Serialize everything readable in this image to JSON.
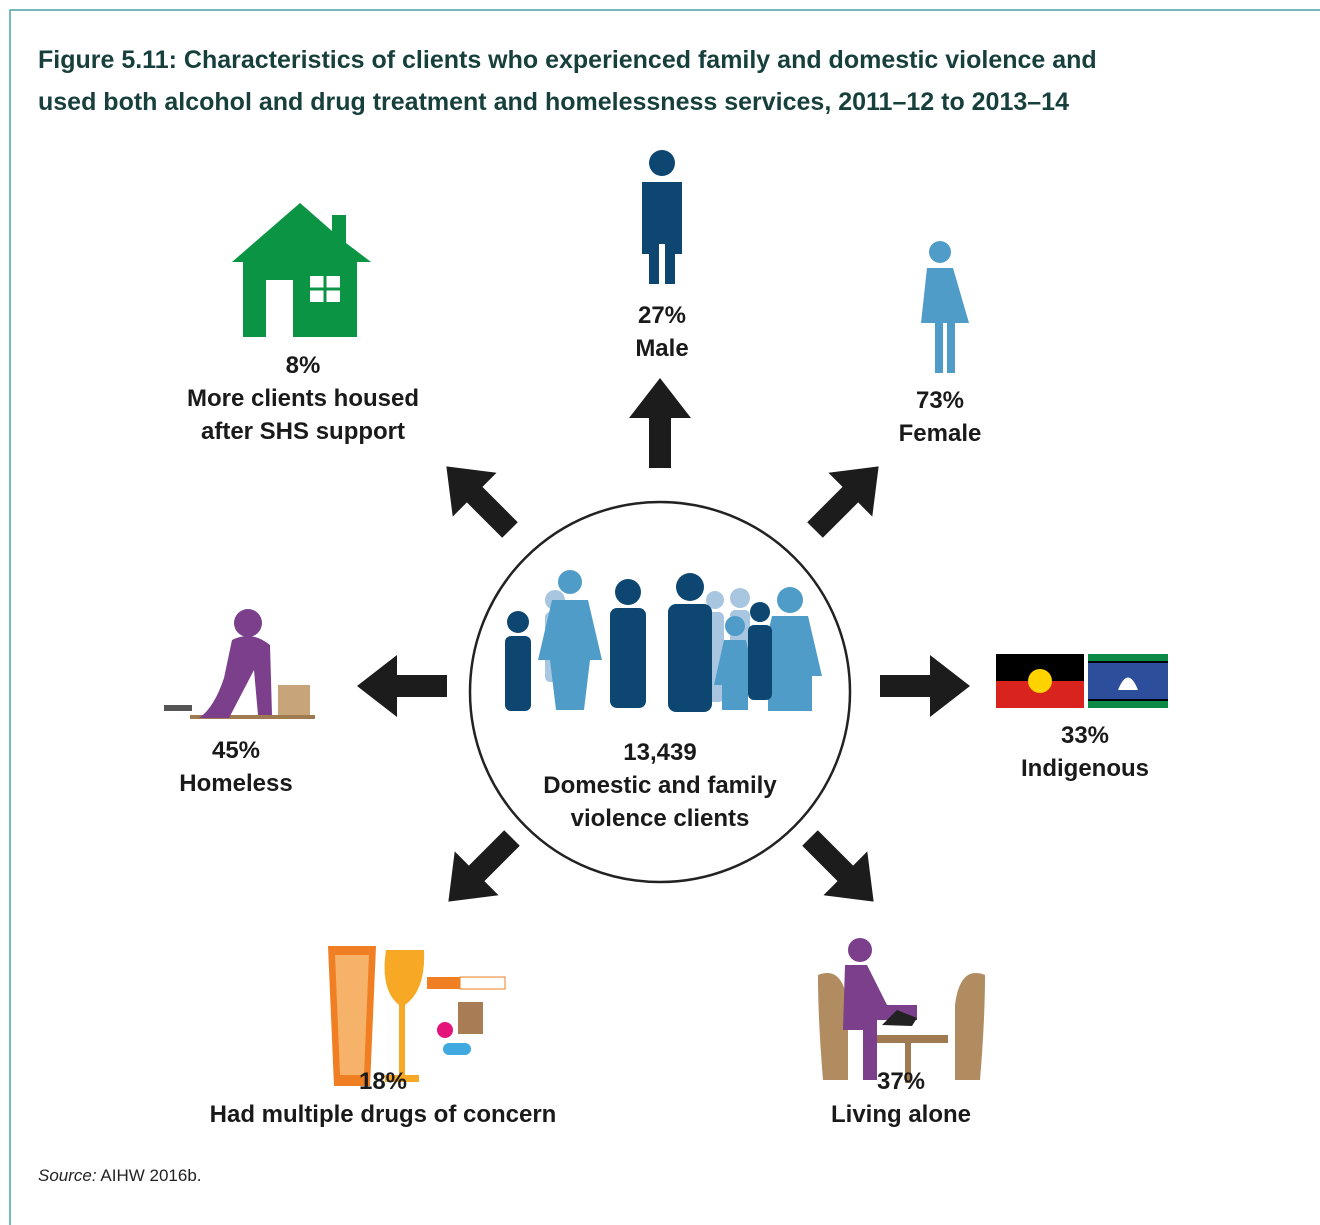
{
  "title": {
    "line1": "Figure 5.11: Characteristics of clients who experienced family and domestic violence and",
    "line2": "used both alcohol and drug treatment and homelessness services, 2011–12 to 2013–14"
  },
  "center": {
    "value": "13,439",
    "line1": "Domestic and family",
    "line2": "violence clients"
  },
  "items": [
    {
      "value": "27%",
      "label": "Male"
    },
    {
      "value": "73%",
      "label": "Female"
    },
    {
      "value": "8%",
      "line1": "More clients housed",
      "line2": "after SHS support"
    },
    {
      "value": "45%",
      "label": "Homeless"
    },
    {
      "value": "33%",
      "label": "Indigenous"
    },
    {
      "value": "18%",
      "label": "Had multiple drugs of concern"
    },
    {
      "value": "37%",
      "label": "Living alone"
    }
  ],
  "source": {
    "prefix": "Source:",
    "text": "AIHW 2016b."
  }
}
